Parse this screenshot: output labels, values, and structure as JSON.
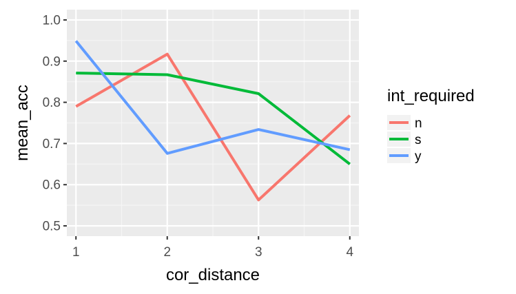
{
  "chart_data": {
    "type": "line",
    "title": "",
    "xlabel": "cor_distance",
    "ylabel": "mean_acc",
    "x": [
      1,
      2,
      3,
      4
    ],
    "x_ticks": [
      "1",
      "2",
      "3",
      "4"
    ],
    "xlim": [
      0.9,
      4.1
    ],
    "y_ticks": [
      "0.5",
      "0.6",
      "0.7",
      "0.8",
      "0.9",
      "1.0"
    ],
    "ylim": [
      0.475,
      1.025
    ],
    "grid": true,
    "legend_title": "int_required",
    "legend_position": "right",
    "series": [
      {
        "name": "n",
        "color": "#F8766D",
        "values": [
          0.79,
          0.917,
          0.563,
          0.768
        ]
      },
      {
        "name": "s",
        "color": "#00BA38",
        "values": [
          0.871,
          0.867,
          0.821,
          0.65
        ]
      },
      {
        "name": "y",
        "color": "#619CFF",
        "values": [
          0.949,
          0.676,
          0.734,
          0.685
        ]
      }
    ]
  }
}
